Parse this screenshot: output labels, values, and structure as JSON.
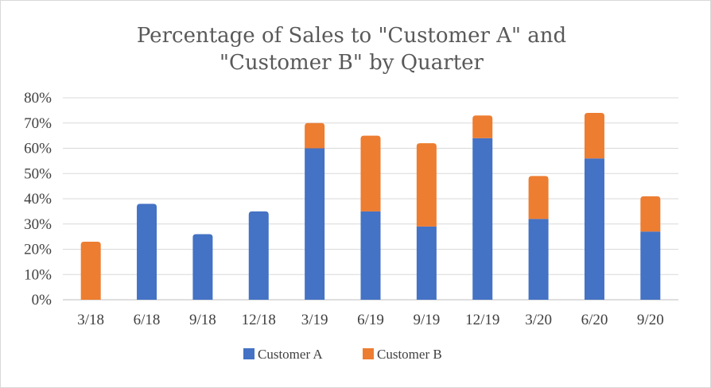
{
  "chart_data": {
    "type": "bar",
    "stacked": true,
    "title_lines": [
      "Percentage of Sales to \"Customer A\" and",
      "\"Customer B\" by Quarter"
    ],
    "categories": [
      "3/18",
      "6/18",
      "9/18",
      "12/18",
      "3/19",
      "6/19",
      "9/19",
      "12/19",
      "3/20",
      "6/20",
      "9/20"
    ],
    "series": [
      {
        "name": "Customer A",
        "color": "#4472c4",
        "values": [
          0,
          38,
          26,
          35,
          60,
          35,
          29,
          64,
          32,
          56,
          27
        ]
      },
      {
        "name": "Customer B",
        "color": "#ed7d31",
        "values": [
          23,
          0,
          0,
          0,
          10,
          30,
          33,
          9,
          17,
          18,
          14
        ]
      }
    ],
    "y_ticks": [
      "0%",
      "10%",
      "20%",
      "30%",
      "40%",
      "50%",
      "60%",
      "70%",
      "80%"
    ],
    "ylim": [
      0,
      80
    ],
    "y_unit": "%",
    "grid": true,
    "legend_position": "bottom"
  }
}
